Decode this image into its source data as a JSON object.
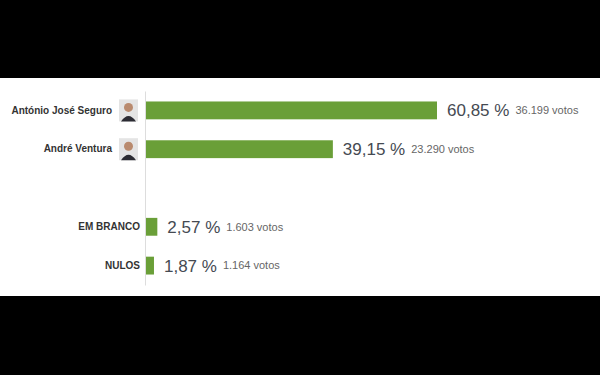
{
  "chart_data": {
    "type": "bar",
    "orientation": "horizontal",
    "categories": [
      "António José Seguro",
      "André Ventura",
      null,
      "EM BRANCO",
      "NULOS"
    ],
    "values": [
      60.85,
      39.15,
      null,
      2.57,
      1.87
    ],
    "value_labels": [
      "60,85 %",
      "39,15 %",
      null,
      "2,57 %",
      "1,87 %"
    ],
    "votes": [
      36199,
      23290,
      null,
      1603,
      1164
    ],
    "vote_labels": [
      "36.199 votos",
      "23.290 votos",
      null,
      "1.603 votos",
      "1.164 votos"
    ],
    "color": "#6a9f38",
    "data_labels": true,
    "tick_labels": "y"
  }
}
